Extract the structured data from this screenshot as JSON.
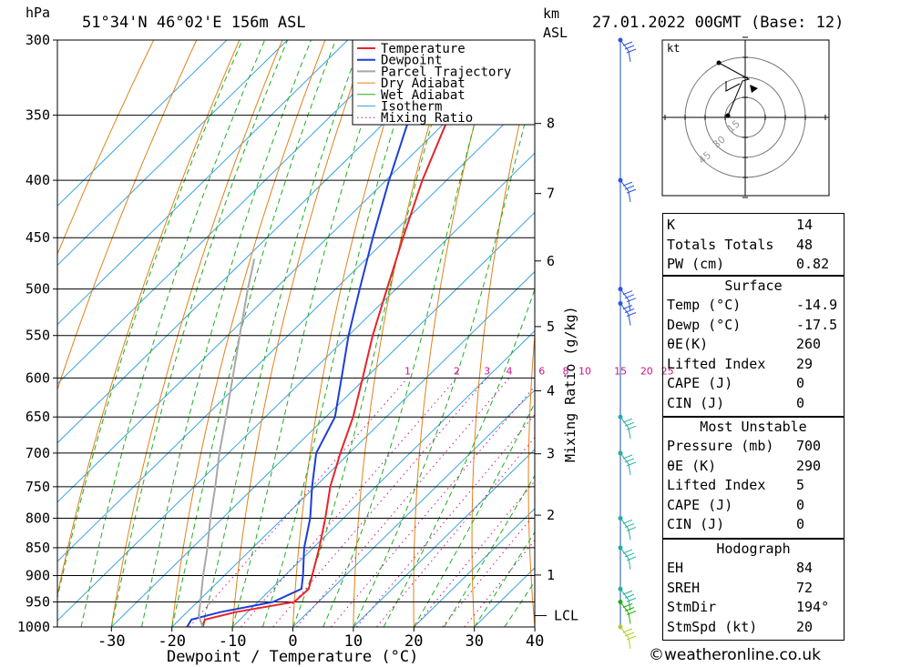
{
  "header": {
    "pressure_unit": "hPa",
    "location": "51°34'N  46°02'E  156m  ASL",
    "km_label": "km",
    "asl_label": "ASL",
    "datetime": "27.01.2022  00GMT  (Base: 12)"
  },
  "chart_data": {
    "type": "skew-t",
    "xlabel": "Dewpoint / Temperature (°C)",
    "ylabel_unit": "hPa",
    "mixing_ratio_axis_label": "Mixing Ratio (g/kg)",
    "pressure_levels": [
      300,
      350,
      400,
      450,
      500,
      550,
      600,
      650,
      700,
      750,
      800,
      850,
      900,
      950,
      1000
    ],
    "temperature_ticks": [
      -30,
      -20,
      -10,
      0,
      10,
      20,
      30,
      40
    ],
    "xlim": [
      -40,
      40
    ],
    "plim": [
      1000,
      300
    ],
    "height_ticks_km": [
      {
        "km": "1",
        "p": 899
      },
      {
        "km": "2",
        "p": 795
      },
      {
        "km": "3",
        "p": 701
      },
      {
        "km": "4",
        "p": 616
      },
      {
        "km": "5",
        "p": 540
      },
      {
        "km": "6",
        "p": 472
      },
      {
        "km": "7",
        "p": 411
      },
      {
        "km": "8",
        "p": 356
      }
    ],
    "lcl_label": "LCL",
    "lcl_pressure": 977,
    "mixing_ratio_labels": [
      "1",
      "2",
      "3",
      "4",
      "6",
      "8",
      "10",
      "15",
      "20",
      "25"
    ],
    "legend": [
      "Temperature",
      "Dewpoint",
      "Parcel Trajectory",
      "Dry Adiabat",
      "Wet Adiabat",
      "Isotherm",
      "Mixing Ratio"
    ],
    "series": [
      {
        "name": "Temperature",
        "color": "#e8242a",
        "points": [
          {
            "p": 1000,
            "t": -14.9
          },
          {
            "p": 985,
            "t": -15.8
          },
          {
            "p": 970,
            "t": -12.0
          },
          {
            "p": 950,
            "t": -4.0
          },
          {
            "p": 925,
            "t": -3.8
          },
          {
            "p": 900,
            "t": -5.5
          },
          {
            "p": 850,
            "t": -9.0
          },
          {
            "p": 800,
            "t": -13.0
          },
          {
            "p": 750,
            "t": -17.5
          },
          {
            "p": 700,
            "t": -21.5
          },
          {
            "p": 650,
            "t": -25.5
          },
          {
            "p": 600,
            "t": -30.5
          },
          {
            "p": 550,
            "t": -36.0
          },
          {
            "p": 500,
            "t": -41.5
          },
          {
            "p": 450,
            "t": -47.5
          },
          {
            "p": 400,
            "t": -54.0
          },
          {
            "p": 350,
            "t": -60.5
          },
          {
            "p": 300,
            "t": -65.5
          }
        ]
      },
      {
        "name": "Dewpoint",
        "color": "#1c3fd6",
        "points": [
          {
            "p": 1000,
            "t": -17.5
          },
          {
            "p": 985,
            "t": -18.0
          },
          {
            "p": 970,
            "t": -14.5
          },
          {
            "p": 950,
            "t": -7.5
          },
          {
            "p": 925,
            "t": -5.0
          },
          {
            "p": 900,
            "t": -7.0
          },
          {
            "p": 850,
            "t": -11.5
          },
          {
            "p": 800,
            "t": -15.5
          },
          {
            "p": 750,
            "t": -20.5
          },
          {
            "p": 700,
            "t": -25.5
          },
          {
            "p": 650,
            "t": -28.5
          },
          {
            "p": 600,
            "t": -34.0
          },
          {
            "p": 550,
            "t": -40.0
          },
          {
            "p": 500,
            "t": -46.0
          },
          {
            "p": 450,
            "t": -52.5
          },
          {
            "p": 400,
            "t": -59.5
          },
          {
            "p": 350,
            "t": -67.0
          },
          {
            "p": 300,
            "t": -72.0
          }
        ]
      },
      {
        "name": "Parcel Trajectory",
        "color": "#a8a8a8",
        "points": [
          {
            "p": 1000,
            "t": -14.9
          },
          {
            "p": 977,
            "t": -17.5
          },
          {
            "p": 950,
            "t": -19.5
          },
          {
            "p": 900,
            "t": -23.5
          },
          {
            "p": 850,
            "t": -27.5
          },
          {
            "p": 800,
            "t": -32.0
          },
          {
            "p": 750,
            "t": -36.5
          },
          {
            "p": 700,
            "t": -41.5
          },
          {
            "p": 650,
            "t": -46.5
          },
          {
            "p": 600,
            "t": -52.0
          },
          {
            "p": 550,
            "t": -58.0
          },
          {
            "p": 500,
            "t": -64.5
          },
          {
            "p": 470,
            "t": -68.5
          }
        ]
      }
    ]
  },
  "hodograph": {
    "unit_label": "kt",
    "ring_labels": [
      "15",
      "30",
      "45"
    ]
  },
  "indices": {
    "top": [
      {
        "label": "K",
        "value": "14"
      },
      {
        "label": "Totals Totals",
        "value": "48"
      },
      {
        "label": "PW (cm)",
        "value": "0.82"
      }
    ],
    "surface": {
      "title": "Surface",
      "rows": [
        {
          "label": "Temp (°C)",
          "value": "-14.9"
        },
        {
          "label": "Dewp (°C)",
          "value": "-17.5"
        },
        {
          "label": "θE(K)",
          "value": "260"
        },
        {
          "label": "Lifted Index",
          "value": "29"
        },
        {
          "label": "CAPE (J)",
          "value": "0"
        },
        {
          "label": "CIN (J)",
          "value": "0"
        }
      ]
    },
    "most_unstable": {
      "title": "Most Unstable",
      "rows": [
        {
          "label": "Pressure (mb)",
          "value": "700"
        },
        {
          "label": "θE (K)",
          "value": "290"
        },
        {
          "label": "Lifted Index",
          "value": "5"
        },
        {
          "label": "CAPE (J)",
          "value": "0"
        },
        {
          "label": "CIN (J)",
          "value": "0"
        }
      ]
    },
    "hodograph": {
      "title": "Hodograph",
      "rows": [
        {
          "label": "EH",
          "value": "84"
        },
        {
          "label": "SREH",
          "value": "72"
        },
        {
          "label": "StmDir",
          "value": "194°"
        },
        {
          "label": "StmSpd (kt)",
          "value": "20"
        }
      ]
    }
  },
  "footer": {
    "copyright_symbol": "©",
    "site": "weatheronline.co.uk"
  }
}
